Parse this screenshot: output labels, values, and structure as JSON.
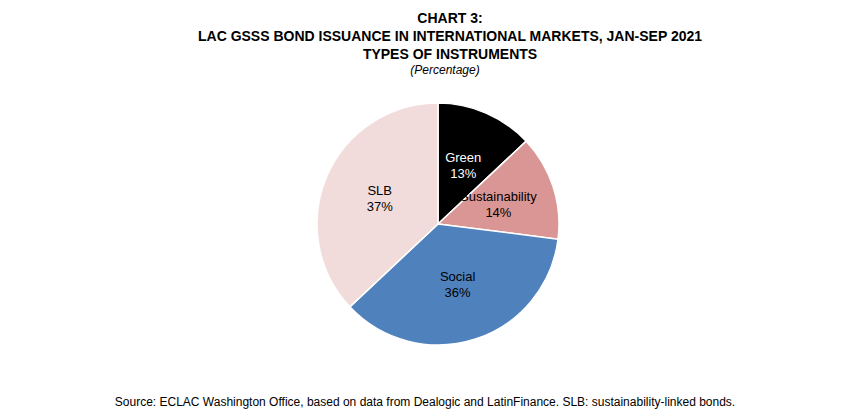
{
  "chart_data": {
    "type": "pie",
    "title": "CHART 3:\nLAC GSSS BOND ISSUANCE IN INTERNATIONAL MARKETS, JAN-SEP 2021\nTYPES OF INSTRUMENTS",
    "subtitle": "(Percentage)",
    "source": "Source: ECLAC Washington Office, based on data from Dealogic and LatinFinance. SLB: sustainability-linked bonds.",
    "categories": [
      "Green",
      "Sustainability",
      "Social",
      "SLB"
    ],
    "values": [
      13,
      14,
      36,
      37
    ],
    "value_labels": [
      "13%",
      "14%",
      "36%",
      "37%"
    ],
    "colors": [
      "#000000",
      "#da9694",
      "#4f81bd",
      "#f2dcdb"
    ],
    "data_labels": true,
    "legend": false
  }
}
